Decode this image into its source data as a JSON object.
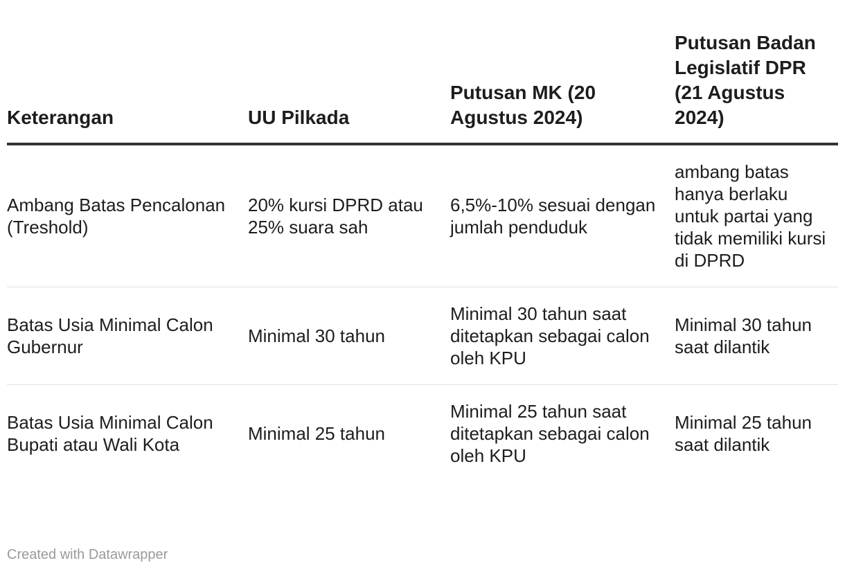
{
  "chart_data": {
    "type": "table",
    "columns": [
      "Keterangan",
      "UU Pilkada",
      "Putusan MK (20 Agustus 2024)",
      "Putusan Badan Legislatif DPR (21 Agustus 2024)"
    ],
    "rows": [
      [
        "Ambang Batas Pencalonan (Treshold)",
        "20% kursi DPRD atau 25% suara sah",
        "6,5%-10% sesuai dengan jumlah penduduk",
        "ambang batas hanya berlaku untuk partai yang tidak memiliki kursi di DPRD"
      ],
      [
        "Batas Usia Minimal Calon Gubernur",
        "Minimal 30 tahun",
        "Minimal 30 tahun saat ditetapkan sebagai calon oleh KPU",
        "Minimal 30 tahun saat dilantik"
      ],
      [
        "Batas Usia Minimal Calon Bupati atau Wali Kota",
        "Minimal 25 tahun",
        "Minimal 25 tahun saat ditetapkan sebagai calon oleh KPU",
        "Minimal 25 tahun saat dilantik"
      ]
    ]
  },
  "footer": {
    "credit": "Created with Datawrapper"
  },
  "colors": {
    "text": "#1d1d1d",
    "header_rule": "#333333",
    "row_rule": "#e3e3e3",
    "footer_text": "#9a9a9a"
  }
}
